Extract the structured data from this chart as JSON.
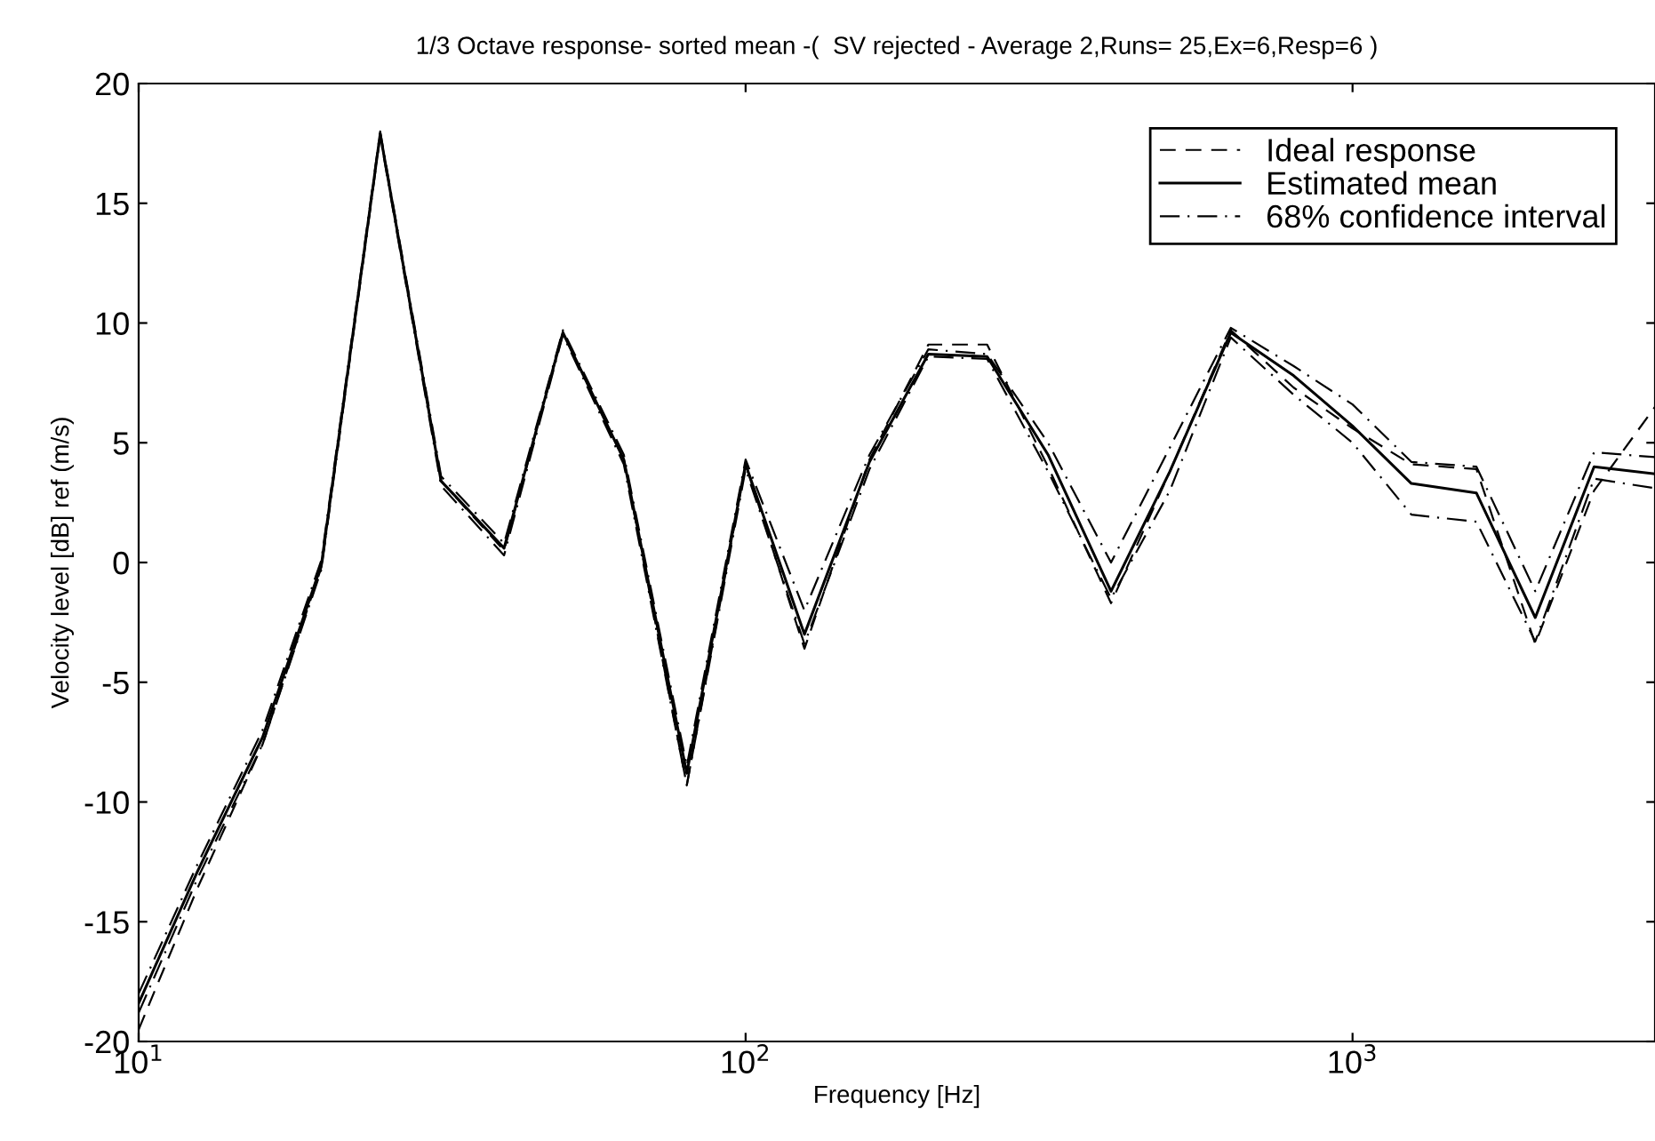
{
  "chart_data": {
    "type": "line",
    "title": "1/3 Octave response- sorted mean -(  SV rejected - Average 2,Runs= 25,Ex=6,Resp=6 )",
    "xlabel": "Frequency [Hz]",
    "ylabel": "Velocity level [dB] ref (m/s)",
    "log": "x",
    "xlim": [
      10,
      3150
    ],
    "xticks": [
      {
        "value": 10,
        "label": "10$^{1}$"
      },
      {
        "value": 100,
        "label": "10$^{2}$"
      },
      {
        "value": 1000,
        "label": "10$^{3}$"
      }
    ],
    "ylim": [
      -20,
      20
    ],
    "yticks": [
      -20,
      -15,
      -10,
      -5,
      0,
      5,
      10,
      15,
      20
    ],
    "grid": false,
    "legend": "top right",
    "marker": "none",
    "x": [
      10,
      12.5,
      16,
      20,
      25,
      31.5,
      40,
      50,
      63,
      80,
      100,
      125,
      160,
      200,
      250,
      315,
      400,
      500,
      630,
      800,
      1000,
      1250,
      1600,
      2000,
      2500,
      3150
    ],
    "series": [
      {
        "name": "Ideal response",
        "color": "#000000",
        "line_style": "dashed",
        "values": [
          -19.5,
          -13.6,
          -7.6,
          -0.2,
          17.9,
          3.4,
          0.5,
          9.6,
          4.3,
          -9.3,
          4.1,
          -3.6,
          4.3,
          9.1,
          9.1,
          4.0,
          -1.7,
          3.8,
          9.7,
          7.3,
          5.6,
          4.1,
          3.9,
          -3.4,
          3.0,
          6.5
        ]
      },
      {
        "name": "Estimated mean",
        "color": "#000000",
        "line_style": "solid",
        "values": [
          -18.4,
          -12.9,
          -7.3,
          -0.1,
          17.9,
          3.4,
          0.6,
          9.6,
          4.3,
          -8.8,
          4.1,
          -3.0,
          4.2,
          8.7,
          8.6,
          4.5,
          -1.2,
          3.8,
          9.6,
          7.8,
          5.7,
          3.3,
          2.9,
          -2.3,
          4.0,
          3.7
        ]
      },
      {
        "name": "68% confidence interval",
        "color": "#000000",
        "line_style": "dashdot",
        "values": [
          -18.0,
          -12.6,
          -7.0,
          0.1,
          18.0,
          3.6,
          0.8,
          9.7,
          4.5,
          -8.5,
          4.3,
          -2.0,
          4.5,
          8.9,
          8.7,
          5.0,
          0.0,
          4.8,
          9.8,
          8.2,
          6.6,
          4.2,
          4.0,
          -1.2,
          4.6,
          4.4
        ]
      },
      {
        "color": "#000000",
        "line_style": "dashdot",
        "values": [
          -18.8,
          -13.2,
          -7.6,
          -0.3,
          17.8,
          3.2,
          0.3,
          9.5,
          4.1,
          -9.3,
          3.9,
          -3.4,
          3.9,
          8.6,
          8.5,
          3.8,
          -1.5,
          3.0,
          9.4,
          7.0,
          5.0,
          2.0,
          1.7,
          -3.3,
          3.5,
          3.1
        ]
      }
    ]
  }
}
